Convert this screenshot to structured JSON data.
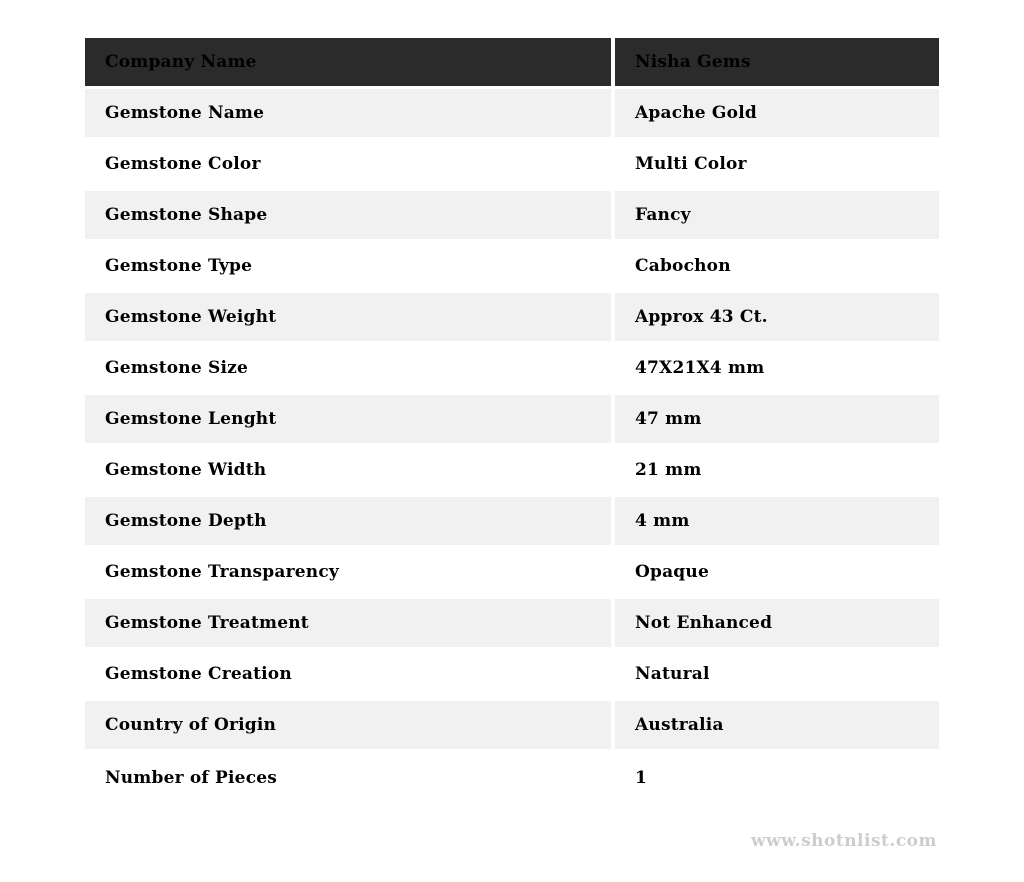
{
  "table": {
    "header": {
      "label": "Company Name",
      "value": "Nisha Gems"
    },
    "rows": [
      {
        "label": "Gemstone Name",
        "value": "Apache Gold"
      },
      {
        "label": "Gemstone Color",
        "value": "Multi Color"
      },
      {
        "label": "Gemstone Shape",
        "value": "Fancy"
      },
      {
        "label": "Gemstone Type",
        "value": "Cabochon"
      },
      {
        "label": "Gemstone Weight",
        "value": "Approx 43 Ct."
      },
      {
        "label": "Gemstone Size",
        "value": "47X21X4 mm"
      },
      {
        "label": "Gemstone Lenght",
        "value": "47 mm"
      },
      {
        "label": "Gemstone Width",
        "value": "21 mm"
      },
      {
        "label": "Gemstone Depth",
        "value": "4 mm"
      },
      {
        "label": "Gemstone Transparency",
        "value": "Opaque"
      },
      {
        "label": "Gemstone Treatment",
        "value": "Not Enhanced"
      },
      {
        "label": "Gemstone Creation",
        "value": "Natural"
      },
      {
        "label": "Country of Origin",
        "value": "Australia"
      },
      {
        "label": "Number of Pieces",
        "value": "1"
      }
    ]
  },
  "footer": {
    "watermark": "www.shotnlist.com"
  },
  "colors": {
    "header_bg": "#2b2b2b",
    "row_alt_bg": "#f1f1f1",
    "row_bg": "#ffffff",
    "text_color": "#000000",
    "watermark_color": "#cdcdcd"
  }
}
